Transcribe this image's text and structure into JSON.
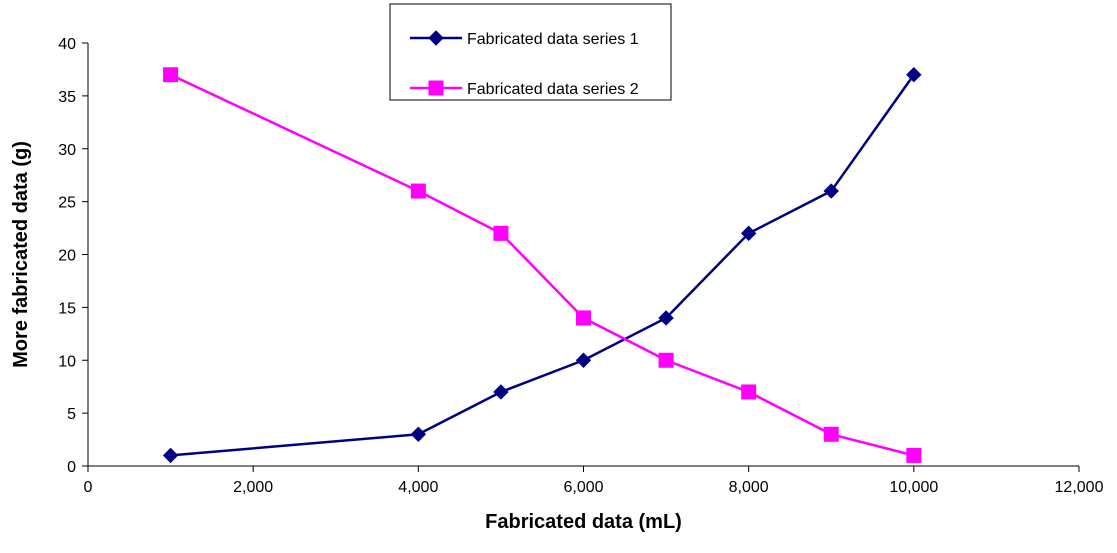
{
  "chart_data": {
    "type": "line",
    "title": "",
    "xlabel": "Fabricated data (mL)",
    "ylabel": "More fabricated data (g)",
    "xlim": [
      0,
      12000
    ],
    "ylim": [
      0,
      40
    ],
    "x_ticks": [
      0,
      2000,
      4000,
      6000,
      8000,
      10000,
      12000
    ],
    "x_tick_labels": [
      "0",
      "2,000",
      "4,000",
      "6,000",
      "8,000",
      "10,000",
      "12,000"
    ],
    "y_ticks": [
      0,
      5,
      10,
      15,
      20,
      25,
      30,
      35,
      40
    ],
    "y_tick_labels": [
      "0",
      "5",
      "10",
      "15",
      "20",
      "25",
      "30",
      "35",
      "40"
    ],
    "grid": false,
    "legend_position": "top-center",
    "series": [
      {
        "name": "Fabricated data series 1",
        "color": "#000080",
        "marker": "diamond",
        "x": [
          1000,
          4000,
          5000,
          6000,
          7000,
          8000,
          9000,
          10000
        ],
        "y": [
          1,
          3,
          7,
          10,
          14,
          22,
          26,
          37
        ]
      },
      {
        "name": "Fabricated data series 2",
        "color": "#FF00FF",
        "marker": "square",
        "x": [
          1000,
          4000,
          5000,
          6000,
          7000,
          8000,
          9000,
          10000
        ],
        "y": [
          37,
          26,
          22,
          14,
          10,
          7,
          3,
          1
        ]
      }
    ]
  }
}
